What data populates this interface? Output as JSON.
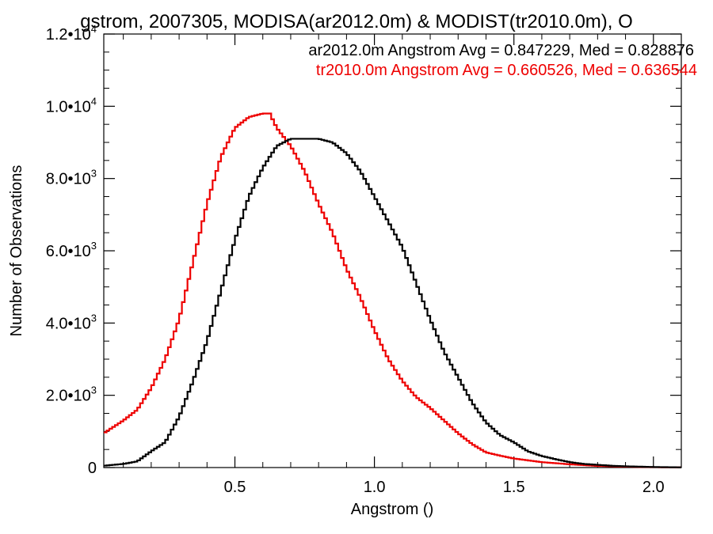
{
  "chart_data": {
    "type": "line",
    "title": "gstrom, 2007305, MODISA(ar2012.0m) & MODIST(tr2010.0m), O",
    "xlabel": "Angstrom ()",
    "ylabel": "Number of Observations",
    "xlim": [
      0.03,
      2.1
    ],
    "ylim": [
      0,
      12000
    ],
    "x_ticks": [
      {
        "value": 0.5,
        "label": "0.5"
      },
      {
        "value": 1.0,
        "label": "1.0"
      },
      {
        "value": 1.5,
        "label": "1.5"
      },
      {
        "value": 2.0,
        "label": "2.0"
      }
    ],
    "y_ticks": [
      {
        "value": 0,
        "mantissa": "0",
        "exponent": ""
      },
      {
        "value": 2000,
        "mantissa": "2.0•10",
        "exponent": "3"
      },
      {
        "value": 4000,
        "mantissa": "4.0•10",
        "exponent": "3"
      },
      {
        "value": 6000,
        "mantissa": "6.0•10",
        "exponent": "3"
      },
      {
        "value": 8000,
        "mantissa": "8.0•10",
        "exponent": "3"
      },
      {
        "value": 10000,
        "mantissa": "1.0•10",
        "exponent": "4"
      },
      {
        "value": 12000,
        "mantissa": "1.2•10",
        "exponent": "4"
      }
    ],
    "grid": false,
    "legend_position": "top-right",
    "step": true,
    "series": [
      {
        "name": "ar2012.0m",
        "label": "ar2012.0m Angstrom Avg = 0.847229, Med = 0.828876",
        "color": "#000000",
        "x": [
          0.03,
          0.1,
          0.15,
          0.2,
          0.25,
          0.3,
          0.35,
          0.4,
          0.45,
          0.5,
          0.55,
          0.6,
          0.65,
          0.7,
          0.75,
          0.8,
          0.85,
          0.9,
          0.95,
          1.0,
          1.05,
          1.1,
          1.15,
          1.2,
          1.25,
          1.3,
          1.35,
          1.4,
          1.45,
          1.5,
          1.55,
          1.6,
          1.65,
          1.7,
          1.75,
          1.8,
          1.85,
          1.9,
          2.0,
          2.1
        ],
        "values": [
          50,
          100,
          170,
          450,
          700,
          1400,
          2400,
          3500,
          4900,
          6300,
          7500,
          8300,
          8900,
          9100,
          9100,
          9100,
          9000,
          8700,
          8200,
          7500,
          6800,
          6100,
          5100,
          4100,
          3200,
          2500,
          1800,
          1250,
          900,
          700,
          450,
          320,
          230,
          150,
          100,
          75,
          50,
          35,
          15,
          5
        ]
      },
      {
        "name": "tr2010.0m",
        "label": "tr2010.0m Angstrom Avg = 0.660526, Med = 0.636544",
        "color": "#ee0000",
        "x": [
          0.03,
          0.1,
          0.15,
          0.2,
          0.25,
          0.3,
          0.35,
          0.4,
          0.45,
          0.5,
          0.55,
          0.6,
          0.625,
          0.65,
          0.7,
          0.75,
          0.8,
          0.85,
          0.9,
          0.95,
          1.0,
          1.05,
          1.1,
          1.15,
          1.2,
          1.25,
          1.3,
          1.35,
          1.4,
          1.45,
          1.5,
          1.6,
          1.7,
          1.8,
          1.9,
          2.0,
          2.1
        ],
        "values": [
          950,
          1300,
          1600,
          2200,
          3000,
          4100,
          5700,
          7300,
          8600,
          9400,
          9700,
          9800,
          9800,
          9400,
          8900,
          8200,
          7300,
          6500,
          5500,
          4700,
          3800,
          3000,
          2400,
          1950,
          1650,
          1300,
          950,
          650,
          420,
          330,
          250,
          150,
          90,
          45,
          25,
          10,
          5
        ]
      }
    ]
  }
}
